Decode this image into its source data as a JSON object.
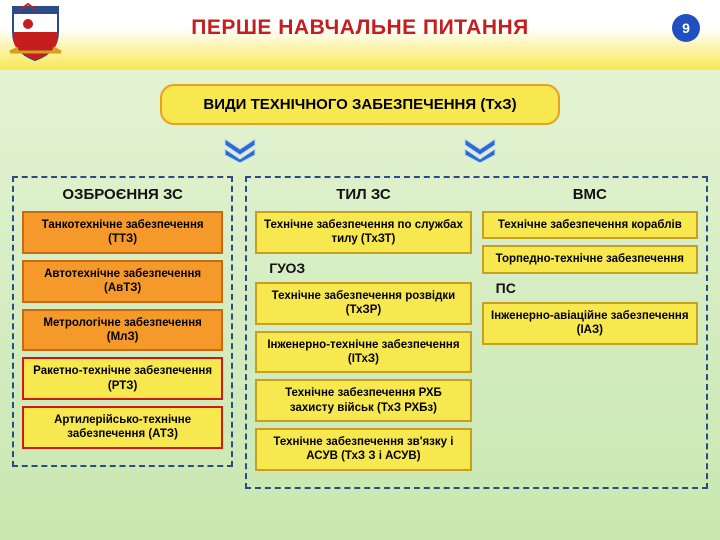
{
  "page_number": "9",
  "title": "ПЕРШЕ НАВЧАЛЬНЕ ПИТАННЯ",
  "main_banner": {
    "text": "ВИДИ ТЕХНІЧНОГО ЗАБЕЗПЕЧЕННЯ (ТхЗ)",
    "fill": "#f8e850",
    "border": "#e8a020"
  },
  "colors": {
    "title": "#c41e1e",
    "dashed_border": "#2a4a8a",
    "chevron": "#2a6bd4",
    "badge_bg": "#2050c0"
  },
  "chevron": {
    "fill": "#2a6bd4",
    "stroke": "#c8d8f0"
  },
  "left_column": {
    "heading": "ОЗБРОЄННЯ ЗС",
    "boxes": [
      {
        "text": "Танкотехнічне забезпечення (ТТЗ)",
        "fill": "#f59a2a",
        "border": "#c86a10"
      },
      {
        "text": "Автотехнічне забезпечення (АвТЗ)",
        "fill": "#f59a2a",
        "border": "#c86a10"
      },
      {
        "text": "Метрологічне забезпечення (МлЗ)",
        "fill": "#f59a2a",
        "border": "#c86a10"
      },
      {
        "text": "Ракетно-технічне забезпечення (РТЗ)",
        "fill": "#f8e850",
        "border": "#d01818"
      },
      {
        "text": "Артилерійсько-технічне забезпечення (АТЗ)",
        "fill": "#f8e850",
        "border": "#d01818"
      }
    ]
  },
  "right_column": {
    "sub_left": {
      "heading": "ТИЛ ЗС",
      "groups": [
        {
          "boxes": [
            {
              "text": "Технічне забезпечення по службах тилу (ТхЗТ)",
              "fill": "#f8e850",
              "border": "#c8a020"
            }
          ]
        },
        {
          "sub_heading": "ГУОЗ",
          "boxes": [
            {
              "text": "Технічне забезпечення розвідки (ТхЗР)",
              "fill": "#f8e850",
              "border": "#c8a020"
            },
            {
              "text": "Інженерно-технічне забезпечення (ІТхЗ)",
              "fill": "#f8e850",
              "border": "#c8a020"
            },
            {
              "text": "Технічне забезпечення РХБ захисту військ (ТхЗ РХБз)",
              "fill": "#f8e850",
              "border": "#c8a020"
            },
            {
              "text": "Технічне забезпечення зв'язку і АСУВ (ТхЗ З і АСУВ)",
              "fill": "#f8e850",
              "border": "#c8a020"
            }
          ]
        }
      ]
    },
    "sub_right": {
      "heading": "ВМС",
      "groups": [
        {
          "boxes": [
            {
              "text": "Технічне забезпечення кораблів",
              "fill": "#f8e850",
              "border": "#c8a020"
            },
            {
              "text": "Торпедно-технічне забезпечення",
              "fill": "#f8e850",
              "border": "#c8a020"
            }
          ]
        },
        {
          "sub_heading": "ПС",
          "boxes": [
            {
              "text": "Інженерно-авіаційне забезпечення (ІАЗ)",
              "fill": "#f8e850",
              "border": "#c8a020"
            }
          ]
        }
      ]
    }
  }
}
